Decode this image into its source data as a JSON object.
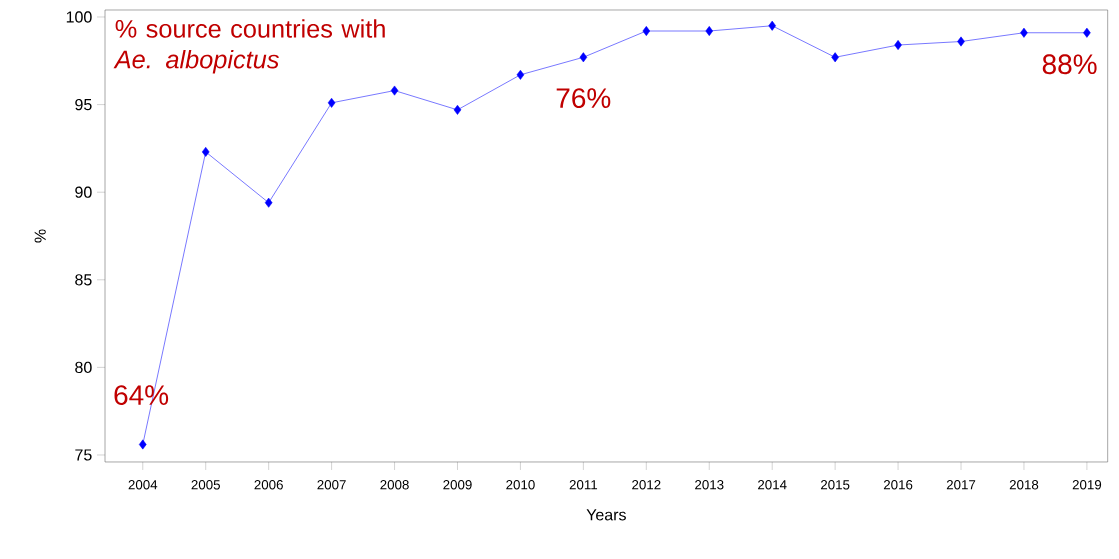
{
  "chart_data": {
    "type": "line",
    "title": "% source countries with *Ae. albopictus*",
    "xlabel": "Years",
    "ylabel": "%",
    "categories": [
      "2004",
      "2005",
      "2006",
      "2007",
      "2008",
      "2009",
      "2010",
      "2011",
      "2012",
      "2013",
      "2014",
      "2015",
      "2016",
      "2017",
      "2018",
      "2019"
    ],
    "series": [
      {
        "color": "#0000ff",
        "values": [
          75.6,
          92.3,
          89.4,
          95.1,
          95.8,
          94.7,
          96.7,
          97.7,
          99.2,
          99.2,
          99.5,
          97.7,
          98.4,
          98.6,
          99.1,
          99.1
        ]
      }
    ],
    "ylim": [
      74.6,
      100.4
    ],
    "yticks": [
      75,
      80,
      85,
      90,
      95,
      100
    ],
    "marker": "diamond",
    "line_style": "solid",
    "grid": false,
    "annotations": [
      "64%",
      "76%",
      "88%"
    ]
  }
}
